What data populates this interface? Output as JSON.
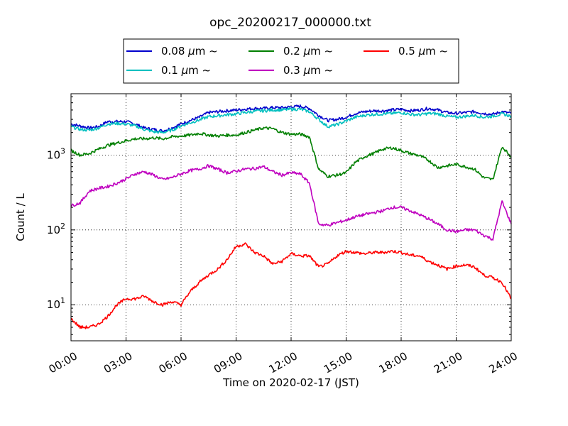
{
  "chart_data": {
    "type": "line",
    "title": "opc_20200217_000000.txt",
    "xlabel": "Time on 2020-02-17 (JST)",
    "ylabel": "Count / L",
    "yscale": "log",
    "xlim": [
      0,
      24
    ],
    "ylim": [
      3.3,
      6600
    ],
    "grid": true,
    "legend_position": "top",
    "x_tick_labels": [
      "00:00",
      "03:00",
      "06:00",
      "09:00",
      "12:00",
      "15:00",
      "18:00",
      "21:00",
      "24:00"
    ],
    "y_tick_labels": [
      {
        "value": 10,
        "base": "10",
        "exp": "1"
      },
      {
        "value": 100,
        "base": "10",
        "exp": "2"
      },
      {
        "value": 1000,
        "base": "10",
        "exp": "3"
      }
    ],
    "x": [
      0,
      0.5,
      1,
      1.5,
      2,
      2.5,
      3,
      3.5,
      4,
      4.5,
      5,
      5.5,
      6,
      6.5,
      7,
      7.5,
      8,
      8.5,
      9,
      9.5,
      10,
      10.5,
      11,
      11.5,
      12,
      12.5,
      13,
      13.5,
      14,
      14.5,
      15,
      15.5,
      16,
      16.5,
      17,
      17.5,
      18,
      18.5,
      19,
      19.5,
      20,
      20.5,
      21,
      21.5,
      22,
      22.5,
      23,
      23.5,
      24
    ],
    "series": [
      {
        "name": "0.08 μm ~",
        "label_text": "0.08",
        "color": "#0000cc",
        "values": [
          2600,
          2450,
          2300,
          2400,
          2800,
          2800,
          2800,
          2600,
          2300,
          2200,
          2100,
          2300,
          2600,
          2900,
          3200,
          3700,
          3800,
          3900,
          4000,
          4100,
          4200,
          4200,
          4300,
          4300,
          4400,
          4500,
          4200,
          3400,
          2900,
          3000,
          3200,
          3600,
          3800,
          3900,
          3900,
          4000,
          4100,
          3900,
          4000,
          4200,
          4000,
          3700,
          3600,
          3700,
          3800,
          3600,
          3500,
          3800,
          3600
        ]
      },
      {
        "name": "0.1 μm ~",
        "label_text": "0.1",
        "color": "#00bfbf",
        "values": [
          2400,
          2200,
          2150,
          2300,
          2600,
          2650,
          2600,
          2450,
          2200,
          2050,
          2000,
          2150,
          2450,
          2700,
          2950,
          3250,
          3350,
          3450,
          3550,
          3700,
          3850,
          3900,
          4000,
          4000,
          4100,
          4100,
          3800,
          3000,
          2400,
          2550,
          2850,
          3200,
          3400,
          3500,
          3550,
          3600,
          3700,
          3500,
          3450,
          3600,
          3550,
          3300,
          3200,
          3300,
          3400,
          3200,
          3300,
          3550,
          3300
        ]
      },
      {
        "name": "0.2 μm ~",
        "label_text": "0.2",
        "color": "#007f00",
        "values": [
          1150,
          1000,
          1050,
          1200,
          1350,
          1450,
          1550,
          1650,
          1650,
          1700,
          1650,
          1750,
          1800,
          1850,
          1950,
          1850,
          1800,
          1850,
          1850,
          2000,
          2150,
          2300,
          2250,
          2000,
          1900,
          1900,
          1750,
          650,
          520,
          540,
          580,
          800,
          950,
          1050,
          1200,
          1250,
          1150,
          1050,
          980,
          850,
          680,
          720,
          750,
          700,
          650,
          500,
          470,
          1300,
          950
        ]
      },
      {
        "name": "0.3 μm ~",
        "label_text": "0.3",
        "color": "#bf00bf",
        "values": [
          210,
          230,
          330,
          360,
          380,
          420,
          480,
          560,
          600,
          540,
          470,
          500,
          560,
          620,
          650,
          720,
          650,
          580,
          610,
          650,
          660,
          700,
          600,
          540,
          580,
          560,
          420,
          120,
          115,
          125,
          135,
          150,
          160,
          170,
          180,
          200,
          200,
          180,
          160,
          140,
          120,
          100,
          95,
          100,
          100,
          85,
          75,
          240,
          120
        ]
      },
      {
        "name": "0.5 μm ~",
        "label_text": "0.5",
        "color": "#ff0000",
        "values": [
          6.5,
          5,
          5,
          5.5,
          7,
          10,
          12,
          12,
          13,
          11,
          10,
          11,
          10,
          15,
          20,
          25,
          30,
          40,
          60,
          65,
          50,
          45,
          35,
          38,
          48,
          45,
          45,
          32,
          35,
          45,
          52,
          50,
          48,
          50,
          50,
          52,
          50,
          46,
          45,
          38,
          34,
          30,
          33,
          34,
          32,
          25,
          23,
          20,
          12
        ]
      }
    ]
  }
}
